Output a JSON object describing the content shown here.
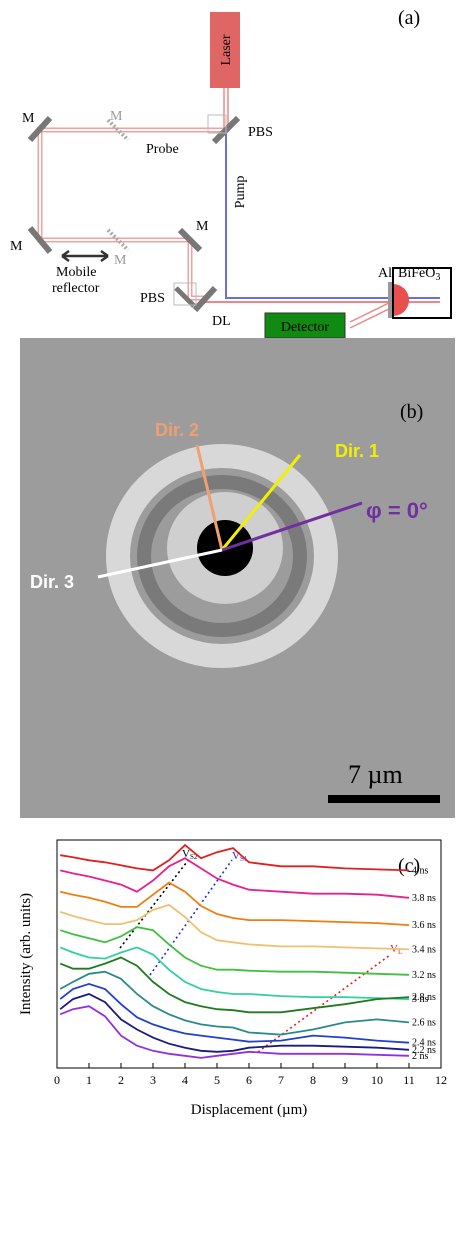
{
  "panel_a": {
    "label": "(a)",
    "laser": "Laser",
    "mirrors": [
      "M",
      "M",
      "M",
      "M",
      "M"
    ],
    "pbs": [
      "PBS",
      "PBS"
    ],
    "probe": "Probe",
    "pump": "Pump",
    "mobile_reflector": [
      "Mobile",
      "reflector"
    ],
    "dl": "DL",
    "detector": "Detector",
    "al": "Al",
    "sample": {
      "main": "BiFeO",
      "sub": "3"
    }
  },
  "panel_b": {
    "label": "(b)",
    "directions": [
      "Dir. 1",
      "Dir. 2",
      "Dir. 3"
    ],
    "phi": "φ = 0°",
    "scale": "7 µm"
  },
  "chart_data": {
    "type": "line",
    "panel_label": "(c)",
    "xlabel": "Displacement (µm)",
    "ylabel": "Intensity (arb. units)",
    "x": [
      0.1,
      0.5,
      1,
      1.5,
      2,
      2.5,
      3,
      3.5,
      4,
      4.5,
      5,
      5.5,
      6,
      7,
      8,
      9,
      10,
      11
    ],
    "xlim": [
      0,
      12
    ],
    "xticks": [
      0,
      1,
      2,
      3,
      4,
      5,
      6,
      7,
      8,
      9,
      10,
      11,
      12
    ],
    "ylim": [
      0,
      22.5
    ],
    "series": [
      {
        "name": "4 ns",
        "color": "#e02020",
        "values": [
          21.0,
          20.8,
          20.5,
          20.3,
          20.0,
          19.7,
          19.5,
          20.5,
          22.0,
          20.7,
          21.3,
          21.7,
          20.3,
          19.9,
          19.9,
          19.7,
          19.6,
          19.5
        ]
      },
      {
        "name": "3.8 ns",
        "color": "#e8208c",
        "values": [
          19.5,
          19.2,
          18.9,
          18.5,
          18.1,
          17.4,
          18.5,
          19.9,
          20.7,
          19.7,
          18.7,
          18.1,
          17.6,
          17.4,
          17.2,
          17.2,
          17.1,
          16.8
        ]
      },
      {
        "name": "3.6 ns",
        "color": "#f07d10",
        "values": [
          17.4,
          17.1,
          16.8,
          16.4,
          15.9,
          15.9,
          17.1,
          18.3,
          17.4,
          16.0,
          15.2,
          14.8,
          14.6,
          14.6,
          14.5,
          14.4,
          14.3,
          14.1
        ]
      },
      {
        "name": "3.4 ns",
        "color": "#f0c070",
        "values": [
          15.4,
          15.0,
          14.6,
          14.2,
          14.2,
          14.6,
          15.6,
          16.1,
          14.9,
          13.4,
          12.6,
          12.4,
          12.2,
          12.0,
          12.0,
          11.9,
          11.8,
          11.7
        ]
      },
      {
        "name": "3.2 ns",
        "color": "#40c040",
        "values": [
          13.6,
          13.2,
          12.8,
          12.4,
          13.0,
          13.9,
          13.6,
          12.2,
          10.9,
          10.1,
          9.7,
          9.7,
          9.6,
          9.5,
          9.5,
          9.4,
          9.3,
          9.2
        ]
      },
      {
        "name": "3 ns",
        "color": "#30d0a0",
        "values": [
          11.9,
          11.4,
          10.9,
          10.8,
          11.4,
          11.9,
          11.2,
          9.7,
          8.5,
          7.8,
          7.5,
          7.3,
          7.3,
          7.1,
          7.0,
          7.0,
          6.9,
          6.8
        ]
      },
      {
        "name": "2.8 ns",
        "color": "#207a20",
        "values": [
          10.3,
          9.8,
          9.8,
          10.3,
          10.9,
          10.1,
          8.5,
          7.3,
          6.5,
          6.1,
          5.8,
          5.7,
          5.5,
          5.5,
          5.9,
          6.3,
          6.8,
          7.0
        ]
      },
      {
        "name": "2.6 ns",
        "color": "#2a8a8a",
        "values": [
          7.8,
          8.5,
          9.3,
          9.5,
          8.8,
          7.3,
          6.1,
          5.3,
          4.7,
          4.3,
          4.1,
          4.0,
          3.5,
          3.3,
          3.8,
          4.5,
          4.8,
          4.5
        ]
      },
      {
        "name": "2.4 ns",
        "color": "#2040d0",
        "values": [
          6.8,
          7.8,
          8.3,
          7.8,
          6.3,
          5.0,
          4.3,
          3.8,
          3.4,
          3.2,
          3.0,
          2.8,
          2.6,
          2.7,
          3.2,
          3.0,
          2.7,
          2.5
        ]
      },
      {
        "name": "2.2 ns",
        "color": "#1a1a80",
        "values": [
          5.8,
          6.8,
          7.3,
          6.5,
          4.8,
          3.8,
          3.0,
          2.4,
          2.0,
          1.7,
          1.6,
          1.7,
          2.0,
          2.2,
          2.2,
          2.1,
          2.0,
          1.8
        ]
      },
      {
        "name": "2 ns",
        "color": "#9030e0",
        "values": [
          5.3,
          5.8,
          6.1,
          5.1,
          3.2,
          2.2,
          1.7,
          1.4,
          1.2,
          1.0,
          1.2,
          1.4,
          1.6,
          1.4,
          1.4,
          1.4,
          1.3,
          1.2
        ]
      }
    ],
    "annotations": [
      {
        "main": "V",
        "sub": "S2"
      },
      {
        "main": "V",
        "sub": "S1"
      },
      {
        "main": "V",
        "sub": "L"
      }
    ]
  }
}
